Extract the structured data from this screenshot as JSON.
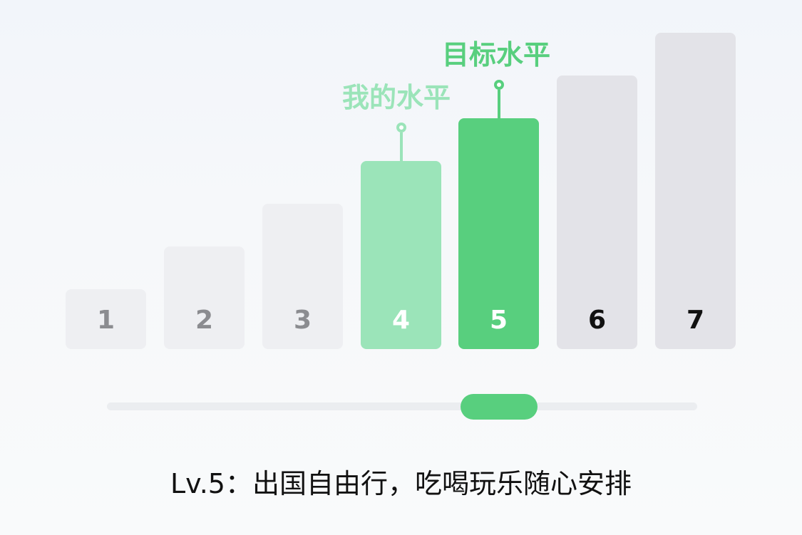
{
  "levels": [
    {
      "label": "1",
      "state": "below"
    },
    {
      "label": "2",
      "state": "below"
    },
    {
      "label": "3",
      "state": "below"
    },
    {
      "label": "4",
      "state": "mine"
    },
    {
      "label": "5",
      "state": "target"
    },
    {
      "label": "6",
      "state": "above"
    },
    {
      "label": "7",
      "state": "above"
    }
  ],
  "markers": {
    "mine_label": "我的水平",
    "target_label": "目标水平"
  },
  "slider": {
    "selected_level": 5,
    "min_level": 1,
    "max_level": 7
  },
  "caption": "Lv.5：出国自由行，吃喝玩乐随心安排",
  "colors": {
    "target_green": "#58cf7e",
    "mine_green": "#9be4b9",
    "inactive_bar": "#eeeff2",
    "future_bar": "#e3e3e8"
  }
}
